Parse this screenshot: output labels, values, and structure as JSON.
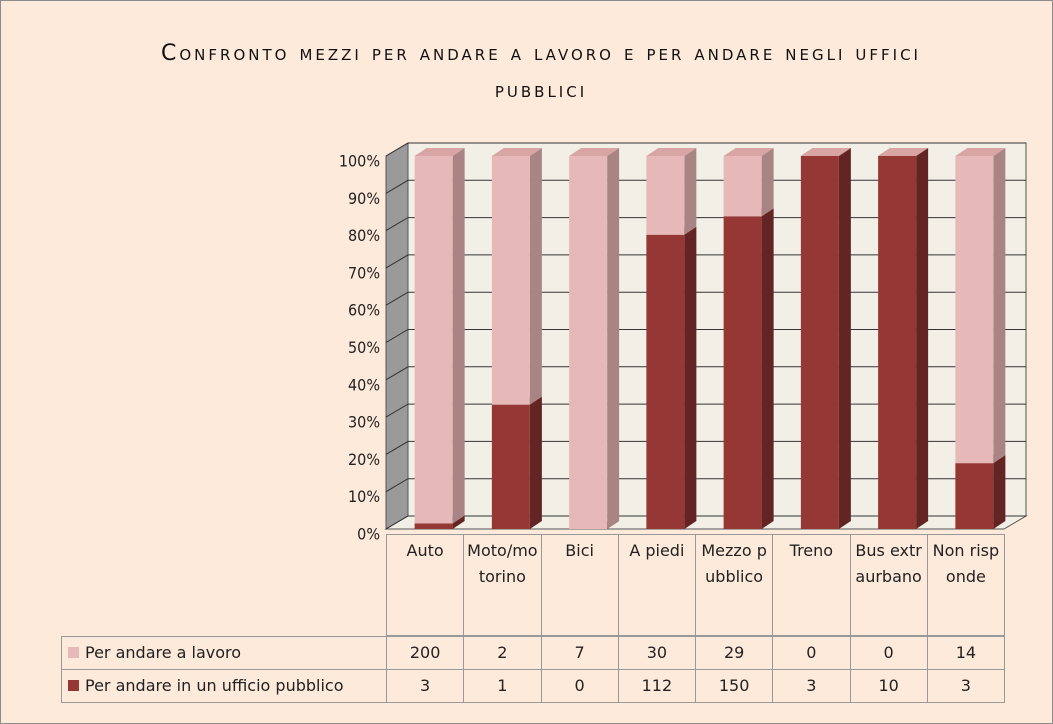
{
  "chart_data": {
    "type": "stacked_bar_3d_percent",
    "title": "Confronto mezzi per andare a lavoro e per andare negli uffici pubblici",
    "categories": [
      "Auto",
      "Moto/motorino",
      "Bici",
      "A piedi",
      "Mezzo pubblico",
      "Treno",
      "Bus extraurbano",
      "Non risponde"
    ],
    "series": [
      {
        "name": "Per andare a lavoro",
        "color": "#e6b9b8",
        "values": [
          200,
          2,
          7,
          30,
          29,
          0,
          0,
          14
        ]
      },
      {
        "name": "Per andare in un ufficio pubblico",
        "color": "#953735",
        "values": [
          3,
          1,
          0,
          112,
          150,
          3,
          10,
          3
        ]
      }
    ],
    "ylim": [
      0,
      100
    ],
    "yticks": [
      {
        "value": 0,
        "label": "0%"
      },
      {
        "value": 10,
        "label": "10%"
      },
      {
        "value": 20,
        "label": "20%"
      },
      {
        "value": 30,
        "label": "30%"
      },
      {
        "value": 40,
        "label": "40%"
      },
      {
        "value": 50,
        "label": "50%"
      },
      {
        "value": 60,
        "label": "60%"
      },
      {
        "value": 70,
        "label": "70%"
      },
      {
        "value": 80,
        "label": "80%"
      },
      {
        "value": 90,
        "label": "90%"
      },
      {
        "value": 100,
        "label": "100%"
      }
    ],
    "grid": true
  }
}
